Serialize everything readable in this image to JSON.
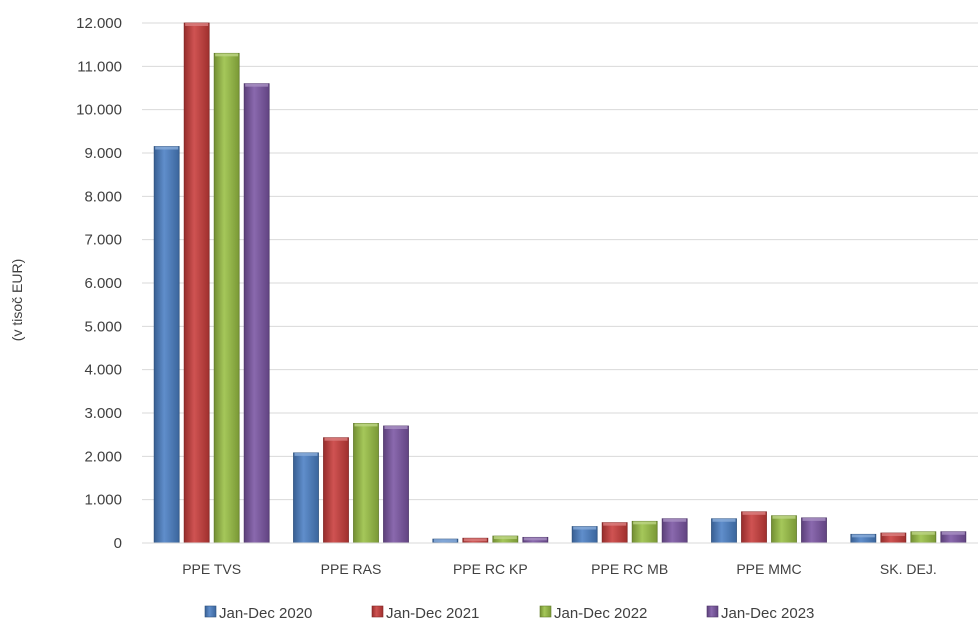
{
  "chart_data": {
    "type": "bar",
    "title": "",
    "xlabel": "",
    "ylabel": "(v tisoč EUR)",
    "ylim": [
      0,
      12000
    ],
    "ytick_step": 1000,
    "ytick_labels": [
      "0",
      "1.000",
      "2.000",
      "3.000",
      "4.000",
      "5.000",
      "6.000",
      "7.000",
      "8.000",
      "9.000",
      "10.000",
      "11.000",
      "12.000"
    ],
    "grid": true,
    "legend_position": "bottom",
    "categories": [
      "PPE TVS",
      "PPE RAS",
      "PPE RC KP",
      "PPE RC MB",
      "PPE MMC",
      "SK. DEJ."
    ],
    "series": [
      {
        "name": "Jan-Dec 2020",
        "color": "#4a7fc4",
        "values": [
          9150,
          2080,
          90,
          380,
          560,
          200
        ]
      },
      {
        "name": "Jan-Dec 2021",
        "color": "#c83c3a",
        "values": [
          12000,
          2430,
          110,
          470,
          720,
          230
        ]
      },
      {
        "name": "Jan-Dec 2022",
        "color": "#99bf44",
        "values": [
          11300,
          2760,
          160,
          500,
          630,
          260
        ]
      },
      {
        "name": "Jan-Dec 2023",
        "color": "#7a55a3",
        "values": [
          10600,
          2700,
          130,
          560,
          580,
          260
        ]
      }
    ]
  }
}
